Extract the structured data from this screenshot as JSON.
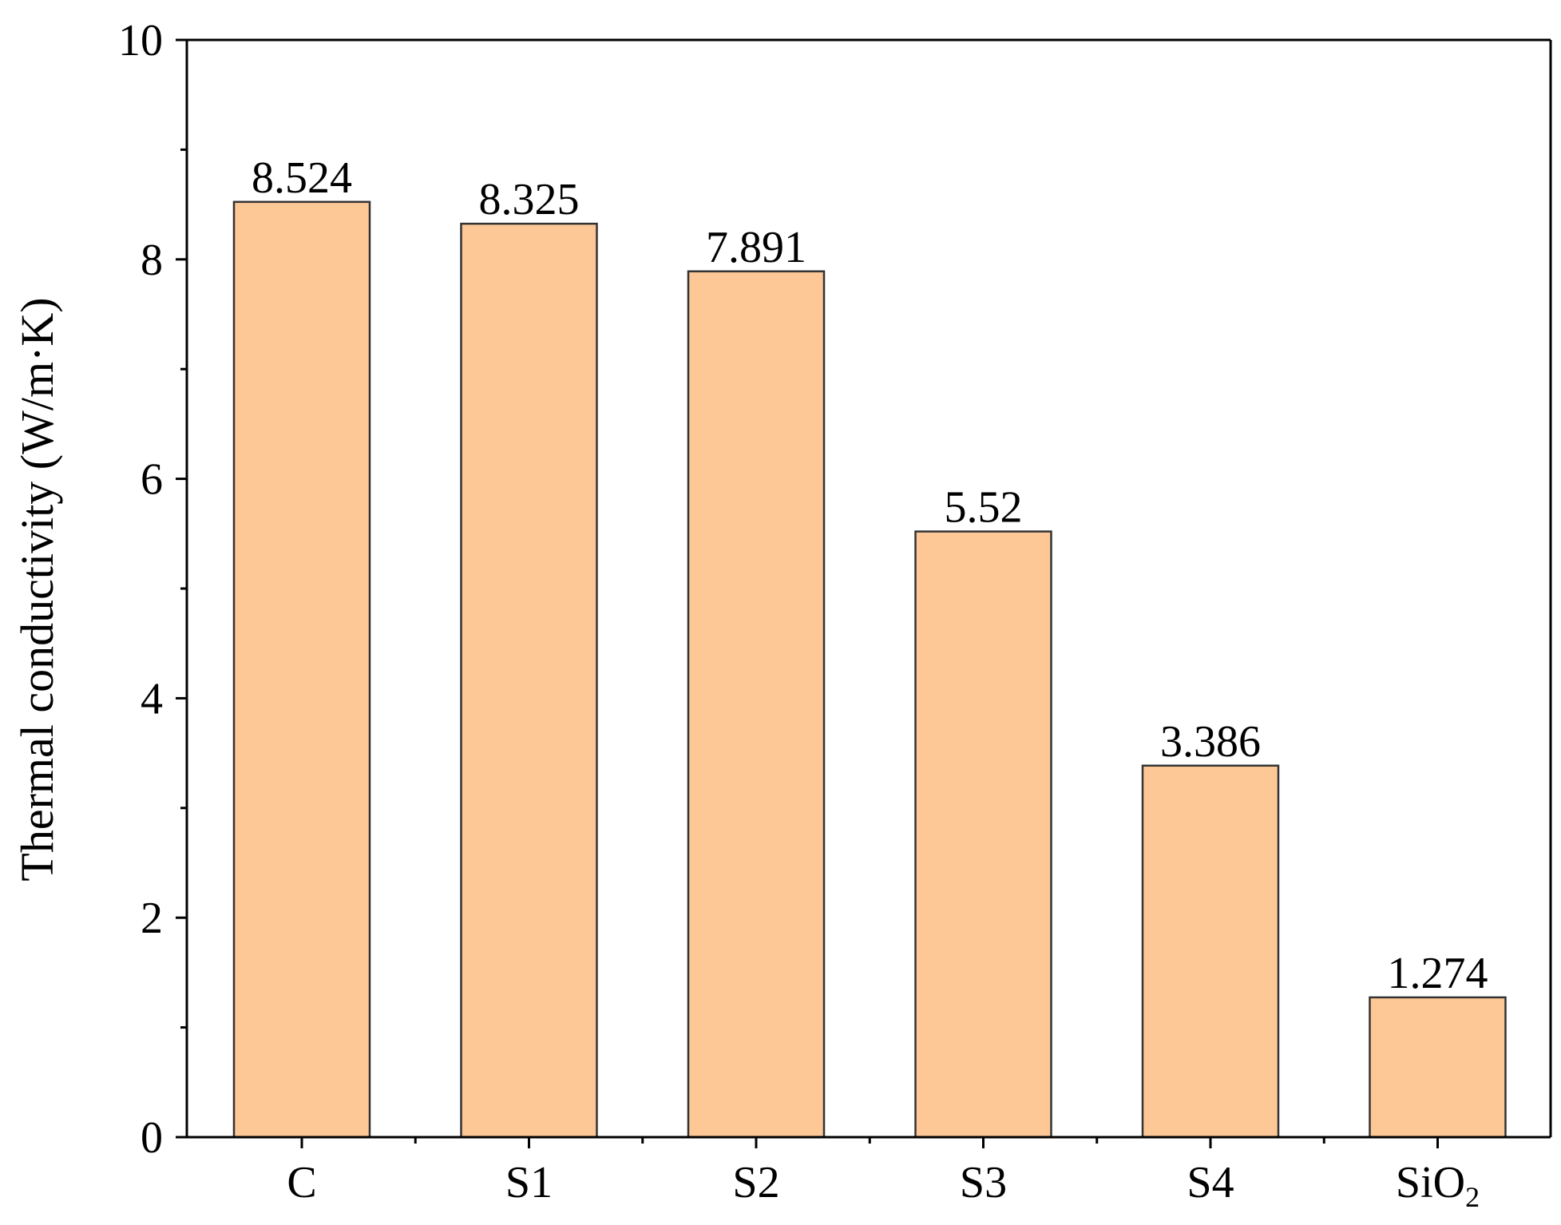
{
  "chart_data": {
    "type": "bar",
    "title": "",
    "xlabel": "",
    "ylabel": "Thermal conductivity (W/m·K)",
    "categories": [
      "C",
      "S1",
      "S2",
      "S3",
      "S4",
      "SiO2"
    ],
    "category_labels": [
      {
        "main": "C",
        "sub": ""
      },
      {
        "main": "S1",
        "sub": ""
      },
      {
        "main": "S2",
        "sub": ""
      },
      {
        "main": "S3",
        "sub": ""
      },
      {
        "main": "S4",
        "sub": ""
      },
      {
        "main": "SiO",
        "sub": "2"
      }
    ],
    "values": [
      8.524,
      8.325,
      7.891,
      5.52,
      3.386,
      1.274
    ],
    "data_labels": [
      "8.524",
      "8.325",
      "7.891",
      "5.52",
      "3.386",
      "1.274"
    ],
    "ylim": [
      0,
      10
    ],
    "y_major_ticks": [
      0,
      2,
      4,
      6,
      8,
      10
    ],
    "y_tick_labels": [
      "0",
      "2",
      "4",
      "6",
      "8",
      "10"
    ],
    "y_minor_ticks": [
      1,
      3,
      5,
      7,
      9
    ],
    "grid": false,
    "legend": "none",
    "colors": {
      "bar_fill": "#FDC896",
      "bar_stroke": "#333333",
      "axis": "#000000"
    }
  }
}
